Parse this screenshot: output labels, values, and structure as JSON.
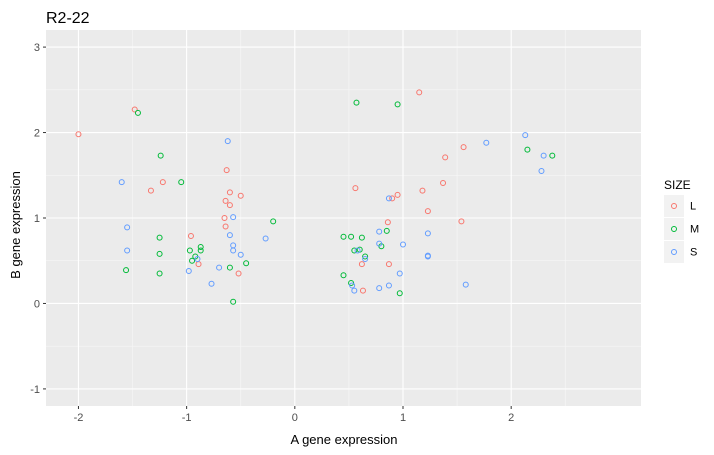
{
  "chart_data": {
    "type": "scatter",
    "title": "R2-22",
    "xlabel": "A gene expression",
    "ylabel": "B gene expression",
    "xlim": [
      -2.3,
      3.2
    ],
    "ylim": [
      -1.2,
      3.2
    ],
    "xticks": [
      -2,
      -1,
      0,
      1,
      2
    ],
    "xtick_labels": [
      "-2",
      "-1",
      "0",
      "1",
      "2"
    ],
    "yticks": [
      -1,
      0,
      1,
      2,
      3
    ],
    "ytick_labels": [
      "-1",
      "0",
      "1",
      "2",
      "3"
    ],
    "grid": true,
    "legend": {
      "title": "SIZE",
      "position": "right"
    },
    "series": [
      {
        "name": "L",
        "color": "#F8766D",
        "points": [
          [
            -2.0,
            1.98
          ],
          [
            -1.48,
            2.27
          ],
          [
            -1.33,
            1.32
          ],
          [
            -1.22,
            1.42
          ],
          [
            -0.96,
            0.79
          ],
          [
            -0.89,
            0.46
          ],
          [
            -0.63,
            1.56
          ],
          [
            -0.64,
            1.2
          ],
          [
            -0.65,
            1.0
          ],
          [
            -0.64,
            0.9
          ],
          [
            -0.6,
            1.3
          ],
          [
            -0.6,
            1.15
          ],
          [
            -0.5,
            1.26
          ],
          [
            -0.52,
            0.35
          ],
          [
            0.56,
            1.35
          ],
          [
            0.62,
            0.46
          ],
          [
            0.63,
            0.15
          ],
          [
            0.86,
            0.95
          ],
          [
            0.87,
            0.46
          ],
          [
            0.9,
            1.23
          ],
          [
            0.95,
            1.27
          ],
          [
            1.15,
            2.47
          ],
          [
            1.18,
            1.32
          ],
          [
            1.23,
            1.08
          ],
          [
            1.37,
            1.41
          ],
          [
            1.39,
            1.71
          ],
          [
            1.54,
            0.96
          ],
          [
            1.56,
            1.83
          ]
        ]
      },
      {
        "name": "M",
        "color": "#00BA38",
        "points": [
          [
            -1.45,
            2.23
          ],
          [
            -1.56,
            0.39
          ],
          [
            -1.24,
            1.73
          ],
          [
            -1.25,
            0.77
          ],
          [
            -1.25,
            0.58
          ],
          [
            -1.25,
            0.35
          ],
          [
            -1.05,
            1.42
          ],
          [
            -0.97,
            0.62
          ],
          [
            -0.95,
            0.5
          ],
          [
            -0.92,
            0.55
          ],
          [
            -0.87,
            0.62
          ],
          [
            -0.87,
            0.66
          ],
          [
            -0.6,
            0.42
          ],
          [
            -0.57,
            0.02
          ],
          [
            -0.45,
            0.47
          ],
          [
            -0.2,
            0.96
          ],
          [
            0.45,
            0.78
          ],
          [
            0.45,
            0.33
          ],
          [
            0.52,
            0.78
          ],
          [
            0.52,
            0.24
          ],
          [
            0.55,
            0.62
          ],
          [
            0.57,
            2.35
          ],
          [
            0.6,
            0.63
          ],
          [
            0.62,
            0.77
          ],
          [
            0.65,
            0.55
          ],
          [
            0.8,
            0.67
          ],
          [
            0.85,
            0.85
          ],
          [
            0.95,
            2.33
          ],
          [
            0.97,
            0.12
          ],
          [
            2.15,
            1.8
          ],
          [
            2.38,
            1.73
          ]
        ]
      },
      {
        "name": "S",
        "color": "#619CFF",
        "points": [
          [
            -1.6,
            1.42
          ],
          [
            -1.55,
            0.89
          ],
          [
            -1.55,
            0.62
          ],
          [
            -0.98,
            0.38
          ],
          [
            -0.9,
            0.52
          ],
          [
            -0.77,
            0.23
          ],
          [
            -0.7,
            0.42
          ],
          [
            -0.62,
            1.9
          ],
          [
            -0.6,
            0.8
          ],
          [
            -0.57,
            1.01
          ],
          [
            -0.57,
            0.68
          ],
          [
            -0.57,
            0.62
          ],
          [
            -0.5,
            0.57
          ],
          [
            -0.27,
            0.76
          ],
          [
            0.53,
            0.21
          ],
          [
            0.55,
            0.15
          ],
          [
            0.58,
            0.62
          ],
          [
            0.65,
            0.52
          ],
          [
            0.78,
            0.84
          ],
          [
            0.78,
            0.7
          ],
          [
            0.78,
            0.18
          ],
          [
            0.87,
            0.21
          ],
          [
            0.87,
            1.23
          ],
          [
            0.97,
            0.35
          ],
          [
            1.0,
            0.69
          ],
          [
            1.23,
            0.82
          ],
          [
            1.23,
            0.56
          ],
          [
            1.23,
            0.55
          ],
          [
            1.58,
            0.22
          ],
          [
            1.77,
            1.88
          ],
          [
            2.13,
            1.97
          ],
          [
            2.28,
            1.55
          ],
          [
            2.3,
            1.73
          ]
        ]
      }
    ]
  }
}
